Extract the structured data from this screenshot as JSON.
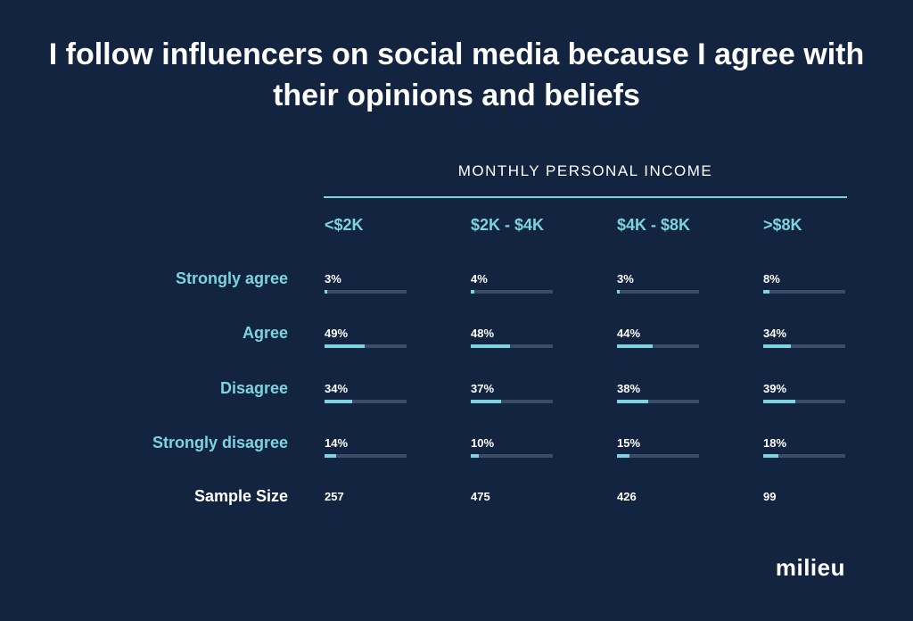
{
  "chart_data": {
    "type": "table",
    "title": "I follow influencers on social media because I agree with their opinions and beliefs",
    "group_label": "MONTHLY PERSONAL INCOME",
    "categories": [
      "<$2K",
      "$2K - $4K",
      "$4K - $8K",
      ">$8K"
    ],
    "series": [
      {
        "name": "Strongly agree",
        "values": [
          3,
          4,
          3,
          8
        ],
        "labels": [
          "3%",
          "4%",
          "3%",
          "8%"
        ]
      },
      {
        "name": "Agree",
        "values": [
          49,
          48,
          44,
          34
        ],
        "labels": [
          "49%",
          "48%",
          "44%",
          "34%"
        ]
      },
      {
        "name": "Disagree",
        "values": [
          34,
          37,
          38,
          39
        ],
        "labels": [
          "34%",
          "37%",
          "38%",
          "39%"
        ]
      },
      {
        "name": "Strongly disagree",
        "values": [
          14,
          10,
          15,
          18
        ],
        "labels": [
          "14%",
          "10%",
          "15%",
          "18%"
        ]
      }
    ],
    "sample_size": {
      "label": "Sample Size",
      "values": [
        "257",
        "475",
        "426",
        "99"
      ]
    },
    "value_max": 100,
    "accent_color": "#7dd3e0",
    "track_color": "#3c4c66",
    "background_color": "#12243f"
  },
  "brand": {
    "logo_text": "milieu"
  }
}
